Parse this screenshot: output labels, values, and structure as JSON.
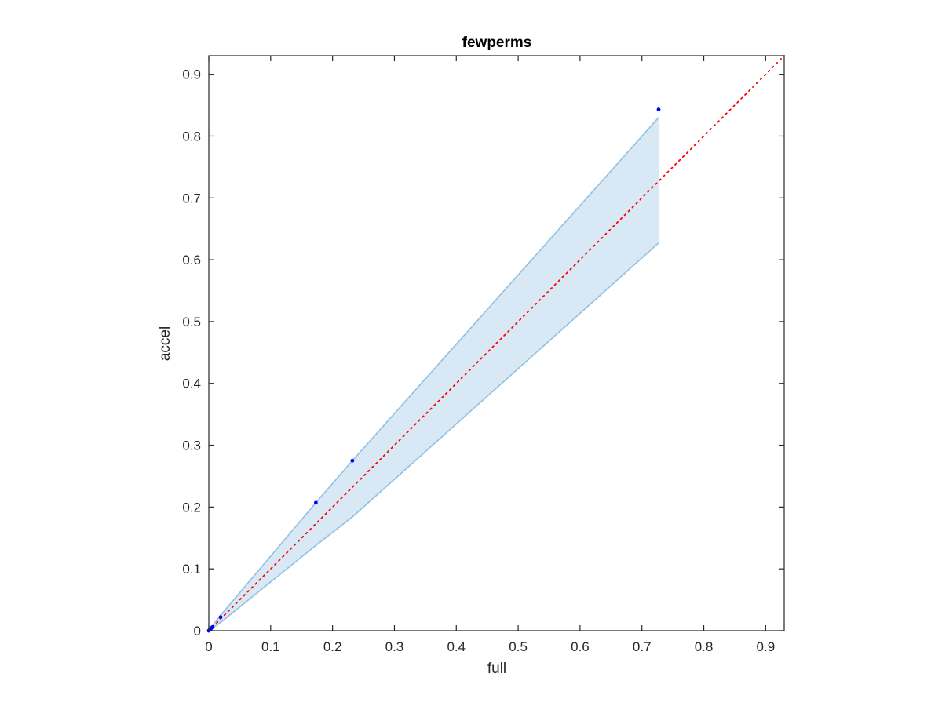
{
  "chart_data": {
    "type": "scatter",
    "title": "fewperms",
    "xlabel": "full",
    "ylabel": "accel",
    "xlim": [
      0,
      0.93
    ],
    "ylim": [
      0,
      0.93
    ],
    "xticks": [
      "0",
      "0.1",
      "0.2",
      "0.3",
      "0.4",
      "0.5",
      "0.6",
      "0.7",
      "0.8",
      "0.9"
    ],
    "yticks": [
      "0",
      "0.1",
      "0.2",
      "0.3",
      "0.4",
      "0.5",
      "0.6",
      "0.7",
      "0.8",
      "0.9"
    ],
    "grid": false,
    "points": {
      "x": [
        0.0,
        0.001,
        0.002,
        0.003,
        0.004,
        0.005,
        0.006,
        0.019,
        0.173,
        0.232,
        0.727
      ],
      "y": [
        0.0,
        0.001,
        0.002,
        0.003,
        0.004,
        0.005,
        0.006,
        0.022,
        0.207,
        0.275,
        0.843
      ],
      "color": "#0000ff"
    },
    "confidence_band": {
      "x": [
        0.0,
        0.02,
        0.173,
        0.232,
        0.727
      ],
      "upper": [
        0.0,
        0.026,
        0.207,
        0.275,
        0.83
      ],
      "lower": [
        0.0,
        0.014,
        0.138,
        0.184,
        0.627
      ],
      "fill_color": "#d8e8f4",
      "edge_color": "#8ec1e3"
    },
    "reference_line": {
      "x": [
        0,
        0.93
      ],
      "y": [
        0,
        0.93
      ],
      "style": "dotted",
      "color": "#ff0000"
    }
  }
}
